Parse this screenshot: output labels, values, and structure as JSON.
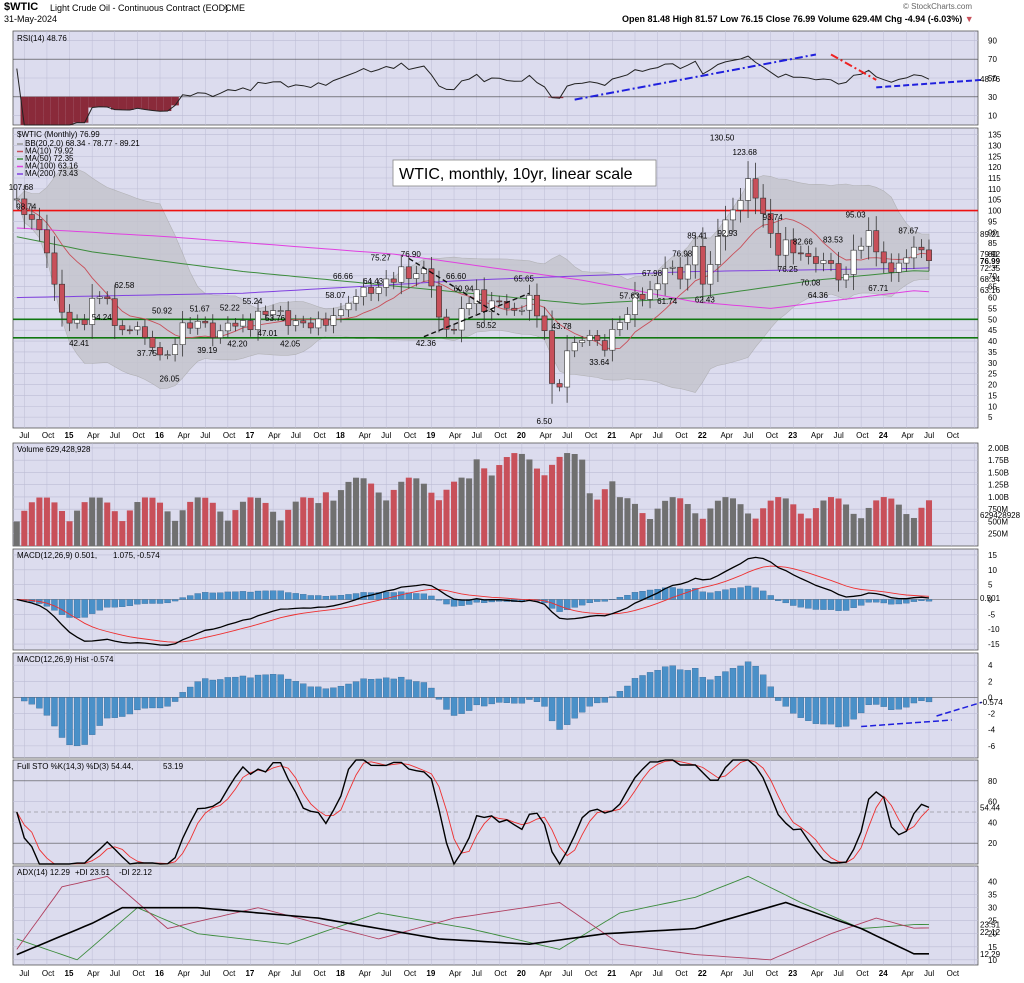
{
  "header": {
    "symbol": "$WTIC",
    "name": "Light Crude Oil - Continuous Contract (EOD)",
    "exchange": "CME",
    "date": "31-May-2024",
    "watermark": "© StockCharts.com",
    "open_label": "Open",
    "open": "81.48",
    "high_label": "High",
    "high": "81.57",
    "low_label": "Low",
    "low": "76.15",
    "close_label": "Close",
    "close": "76.99",
    "volume_label": "Volume",
    "volume": "629.4M",
    "chg_label": "Chg",
    "chg": "-4.94 (-6.03%)"
  },
  "colors": {
    "panel_bg": "#dcdcee",
    "grid": "#bcbcd4",
    "up": "#ffffff",
    "down": "#c8505a",
    "volume_up": "#707070",
    "volume_down": "#c8505a",
    "bb": "#a8a8a8",
    "ma10": "#c8505a",
    "ma50": "#3c8c3c",
    "ma100": "#e040e0",
    "ma200": "#8040e0",
    "hline": "#ee1111",
    "support": "#117711",
    "trend_blue": "#2020dd",
    "hist": "#4a90c8",
    "macd": "#000000",
    "signal": "#ee3030",
    "plus_di": "#3c8c3c",
    "minus_di": "#b04060"
  },
  "annotation": "WTIC, monthly, 10yr, linear scale",
  "panels": {
    "rsi": {
      "label": "RSI(14) 48.76",
      "ticks": [
        "90",
        "70",
        "50",
        "30",
        "10"
      ],
      "value": "48.76"
    },
    "price": {
      "label": "$WTIC (Monthly) 76.99",
      "legend": [
        {
          "text": "BB(20,2.0) 68.34 - 78.77 - 89.21",
          "color": "#999999"
        },
        {
          "text": "MA(10) 79.92",
          "color": "#c8505a"
        },
        {
          "text": "MA(50) 72.35",
          "color": "#3c8c3c"
        },
        {
          "text": "MA(100) 63.16",
          "color": "#e040e0"
        },
        {
          "text": "MA(200) 73.43",
          "color": "#8040e0"
        }
      ],
      "ticks": [
        "135",
        "130",
        "125",
        "120",
        "115",
        "110",
        "105",
        "100",
        "95",
        "90",
        "85",
        "80",
        "75",
        "70",
        "65",
        "60",
        "55",
        "50",
        "45",
        "40",
        "35",
        "30",
        "25",
        "20",
        "15",
        "10",
        "5"
      ],
      "right_values": [
        "89.21",
        "79.92",
        "76.99",
        "72.35",
        "68.34",
        "63.16"
      ],
      "hlines": [
        100,
        50,
        41.5
      ]
    },
    "volume": {
      "label": "Volume 629,428,928",
      "ticks": [
        "2.00B",
        "1.75B",
        "1.50B",
        "1.25B",
        "1.00B",
        "750M",
        "500M",
        "250M"
      ],
      "value": "629428928"
    },
    "macd": {
      "label": "MACD(12,26,9) 0.501, 1.075, -0.574",
      "label_macd": "MACD(12,26,9) 0.501,",
      "label_signal": "1.075,",
      "label_hist": "-0.574",
      "ticks": [
        "15",
        "10",
        "5",
        "0",
        "-5",
        "-10",
        "-15"
      ],
      "value": "0.501"
    },
    "hist": {
      "label": "MACD(12,26,9) Hist -0.574",
      "ticks": [
        "4",
        "2",
        "0",
        "-2",
        "-4",
        "-6"
      ],
      "value": "-0.574"
    },
    "sto": {
      "label": "Full STO %K(14,3) %D(3) 54.44, 53.19",
      "label_k": "Full STO %K(14,3) %D(3) 54.44,",
      "label_d": "53.19",
      "ticks": [
        "80",
        "60",
        "40",
        "20"
      ],
      "value": "54.44"
    },
    "adx": {
      "label": "ADX(14) 12.29 +DI 23.51 -DI 22.12",
      "label_adx": "ADX(14) 12.29",
      "label_pdi": "+DI 23.51",
      "label_mdi": "-DI 22.12",
      "ticks": [
        "40",
        "35",
        "30",
        "25",
        "20",
        "15",
        "10"
      ],
      "values": [
        "23.51",
        "22.12",
        "12.29"
      ]
    }
  },
  "x_axis": [
    "Jul",
    "Oct",
    "15",
    "Apr",
    "Jul",
    "Oct",
    "16",
    "Apr",
    "Jul",
    "Oct",
    "17",
    "Apr",
    "Jul",
    "Oct",
    "18",
    "Apr",
    "Jul",
    "Oct",
    "19",
    "Apr",
    "Jul",
    "Oct",
    "20",
    "Apr",
    "Jul",
    "Oct",
    "21",
    "Apr",
    "Jul",
    "Oct",
    "22",
    "Apr",
    "Jul",
    "Oct",
    "23",
    "Apr",
    "Jul",
    "Oct",
    "24",
    "Apr",
    "Jul",
    "Oct"
  ],
  "chart_data": {
    "type": "candlestick",
    "interval": "monthly",
    "title": "$WTIC Light Crude Oil - Continuous Contract (EOD)",
    "annotation": "WTIC, monthly, 10yr, linear scale",
    "x_start": "2014-06",
    "x_end": "2024-05",
    "x_axis_end": "2024-11",
    "ylim": [
      0,
      138
    ],
    "close": [
      105.37,
      98.17,
      95.96,
      91.16,
      80.54,
      66.15,
      53.27,
      48.24,
      49.76,
      47.6,
      59.63,
      60.3,
      59.47,
      47.12,
      45.17,
      45.09,
      46.59,
      41.65,
      37.04,
      33.62,
      33.75,
      38.34,
      48.37,
      45.92,
      49.1,
      48.33,
      41.6,
      44.7,
      48.24,
      46.86,
      49.44,
      45.23,
      53.72,
      52.17,
      53.99,
      54.02,
      47.15,
      49.33,
      48.32,
      46.04,
      50.17,
      47.23,
      51.67,
      54.38,
      57.4,
      60.42,
      64.73,
      61.89,
      64.68,
      68.57,
      67.04,
      74.15,
      68.76,
      70.98,
      73.25,
      65.31,
      51.03,
      45.41,
      45.06,
      54.87,
      57.21,
      63.59,
      53.5,
      58.47,
      58.26,
      55.1,
      54.07,
      54.18,
      61.06,
      51.56,
      44.76,
      20.48,
      18.84,
      35.49,
      39.27,
      40.27,
      42.61,
      40.22,
      35.79,
      45.34,
      48.52,
      52.2,
      61.5,
      59.16,
      63.58,
      66.32,
      73.47,
      73.95,
      68.5,
      75.03,
      83.57,
      66.18,
      75.21,
      88.15,
      95.72,
      100.28,
      104.69,
      114.67,
      105.76,
      98.62,
      89.55,
      79.49,
      86.53,
      80.55,
      80.26,
      78.87,
      75.68,
      77.05,
      75.66,
      68.09,
      70.64,
      81.8,
      83.63,
      90.79,
      81.02,
      75.96,
      71.65,
      75.85,
      78.26,
      83.17,
      81.93,
      76.99
    ],
    "moving_averages": {
      "MA(10)": 79.92,
      "MA(50)": 72.35,
      "MA(100)": 63.16,
      "MA(200)": 73.43
    },
    "bollinger_bands": {
      "period": 20,
      "stdev": 2.0,
      "lower": 68.34,
      "middle": 78.77,
      "upper": 89.21
    },
    "price_labels": [
      {
        "date": "2014-06",
        "value": 107.68
      },
      {
        "date": "2014-07",
        "value": 98.74
      },
      {
        "date": "2015-02",
        "value": 42.41
      },
      {
        "date": "2015-05",
        "value": 54.24
      },
      {
        "date": "2015-08",
        "value": 62.58
      },
      {
        "date": "2015-11",
        "value": 37.75
      },
      {
        "date": "2016-01",
        "value": 50.92
      },
      {
        "date": "2016-02",
        "value": 26.05
      },
      {
        "date": "2016-06",
        "value": 51.67
      },
      {
        "date": "2016-07",
        "value": 39.19
      },
      {
        "date": "2016-10",
        "value": 52.22
      },
      {
        "date": "2016-11",
        "value": 42.2
      },
      {
        "date": "2017-01",
        "value": 55.24
      },
      {
        "date": "2017-03",
        "value": 47.01
      },
      {
        "date": "2017-04",
        "value": 53.76
      },
      {
        "date": "2017-06",
        "value": 42.05
      },
      {
        "date": "2017-12",
        "value": 58.07
      },
      {
        "date": "2018-01",
        "value": 66.66
      },
      {
        "date": "2018-05",
        "value": 64.43
      },
      {
        "date": "2018-06",
        "value": 75.27
      },
      {
        "date": "2018-10",
        "value": 76.9
      },
      {
        "date": "2018-12",
        "value": 42.36
      },
      {
        "date": "2019-04",
        "value": 66.6
      },
      {
        "date": "2019-05",
        "value": 60.94
      },
      {
        "date": "2019-08",
        "value": 50.52
      },
      {
        "date": "2020-01",
        "value": 65.65
      },
      {
        "date": "2020-04",
        "value": 6.5
      },
      {
        "date": "2020-06",
        "value": 43.78
      },
      {
        "date": "2020-11",
        "value": 33.64
      },
      {
        "date": "2021-03",
        "value": 57.63
      },
      {
        "date": "2021-06",
        "value": 67.98
      },
      {
        "date": "2021-08",
        "value": 61.74
      },
      {
        "date": "2021-10",
        "value": 76.98
      },
      {
        "date": "2021-12",
        "value": 85.41
      },
      {
        "date": "2022-01",
        "value": 62.43
      },
      {
        "date": "2022-03",
        "value": 130.5
      },
      {
        "date": "2022-04",
        "value": 92.93
      },
      {
        "date": "2022-06",
        "value": 123.68
      },
      {
        "date": "2022-10",
        "value": 93.74
      },
      {
        "date": "2022-12",
        "value": 76.25
      },
      {
        "date": "2023-02",
        "value": 82.66
      },
      {
        "date": "2023-03",
        "value": 70.08
      },
      {
        "date": "2023-04",
        "value": 64.36
      },
      {
        "date": "2023-06",
        "value": 83.53
      },
      {
        "date": "2023-09",
        "value": 95.03
      },
      {
        "date": "2023-12",
        "value": 67.71
      },
      {
        "date": "2024-04",
        "value": 87.67
      }
    ],
    "indicators": {
      "RSI(14)": 48.76,
      "MACD(12,26,9)": {
        "macd": 0.501,
        "signal": 1.075,
        "histogram": -0.574
      },
      "Full STO %K(14,3) %D(3)": {
        "k": 54.44,
        "d": 53.19
      },
      "ADX(14)": {
        "adx": 12.29,
        "plus_di": 23.51,
        "minus_di": 22.12
      },
      "Volume": 629428928
    }
  }
}
